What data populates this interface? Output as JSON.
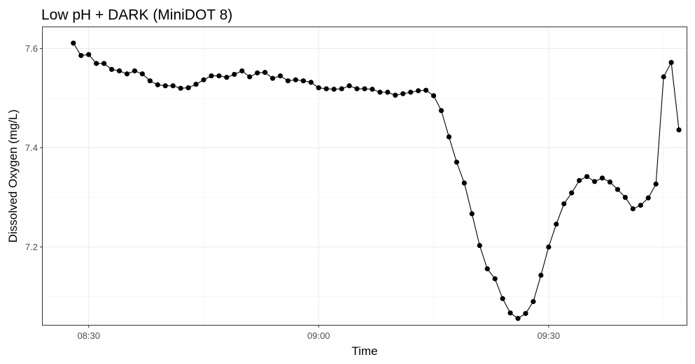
{
  "chart_data": {
    "type": "line",
    "title": "Low pH + DARK (MiniDOT 8)",
    "xlabel": "Time",
    "ylabel": "Dissolved Oxygen (mg/L)",
    "x_unit": "minutes",
    "x_start": "08:28",
    "x_step": 1,
    "x_ticks": [
      {
        "value": "08:30",
        "label": "08:30"
      },
      {
        "value": "09:00",
        "label": "09:00"
      },
      {
        "value": "09:30",
        "label": "09:30"
      }
    ],
    "y_ticks": [
      7.2,
      7.4,
      7.6
    ],
    "y_tick_labels": [
      "7.2",
      "7.4",
      "7.6"
    ],
    "xlim": [
      "08:24",
      "09:48"
    ],
    "ylim": [
      7.043,
      7.643
    ],
    "grid": true,
    "markers": "filled-circle",
    "colors": {
      "line": "#000000",
      "marker": "#000000",
      "grid": "#ebebeb",
      "border": "#333333"
    },
    "series": [
      {
        "values": [
          7.611,
          7.586,
          7.588,
          7.57,
          7.57,
          7.558,
          7.555,
          7.549,
          7.555,
          7.549,
          7.535,
          7.527,
          7.525,
          7.525,
          7.52,
          7.521,
          7.528,
          7.537,
          7.545,
          7.545,
          7.542,
          7.548,
          7.555,
          7.543,
          7.551,
          7.552,
          7.54,
          7.545,
          7.535,
          7.537,
          7.535,
          7.532,
          7.521,
          7.519,
          7.518,
          7.519,
          7.525,
          7.519,
          7.519,
          7.518,
          7.512,
          7.512,
          7.506,
          7.509,
          7.512,
          7.515,
          7.516,
          7.505,
          7.475,
          7.422,
          7.371,
          7.329,
          7.267,
          7.203,
          7.156,
          7.136,
          7.096,
          7.067,
          7.056,
          7.066,
          7.09,
          7.143,
          7.2,
          7.246,
          7.287,
          7.309,
          7.334,
          7.342,
          7.332,
          7.339,
          7.331,
          7.316,
          7.3,
          7.277,
          7.284,
          7.299,
          7.327,
          7.543,
          7.572,
          7.436
        ]
      }
    ]
  }
}
